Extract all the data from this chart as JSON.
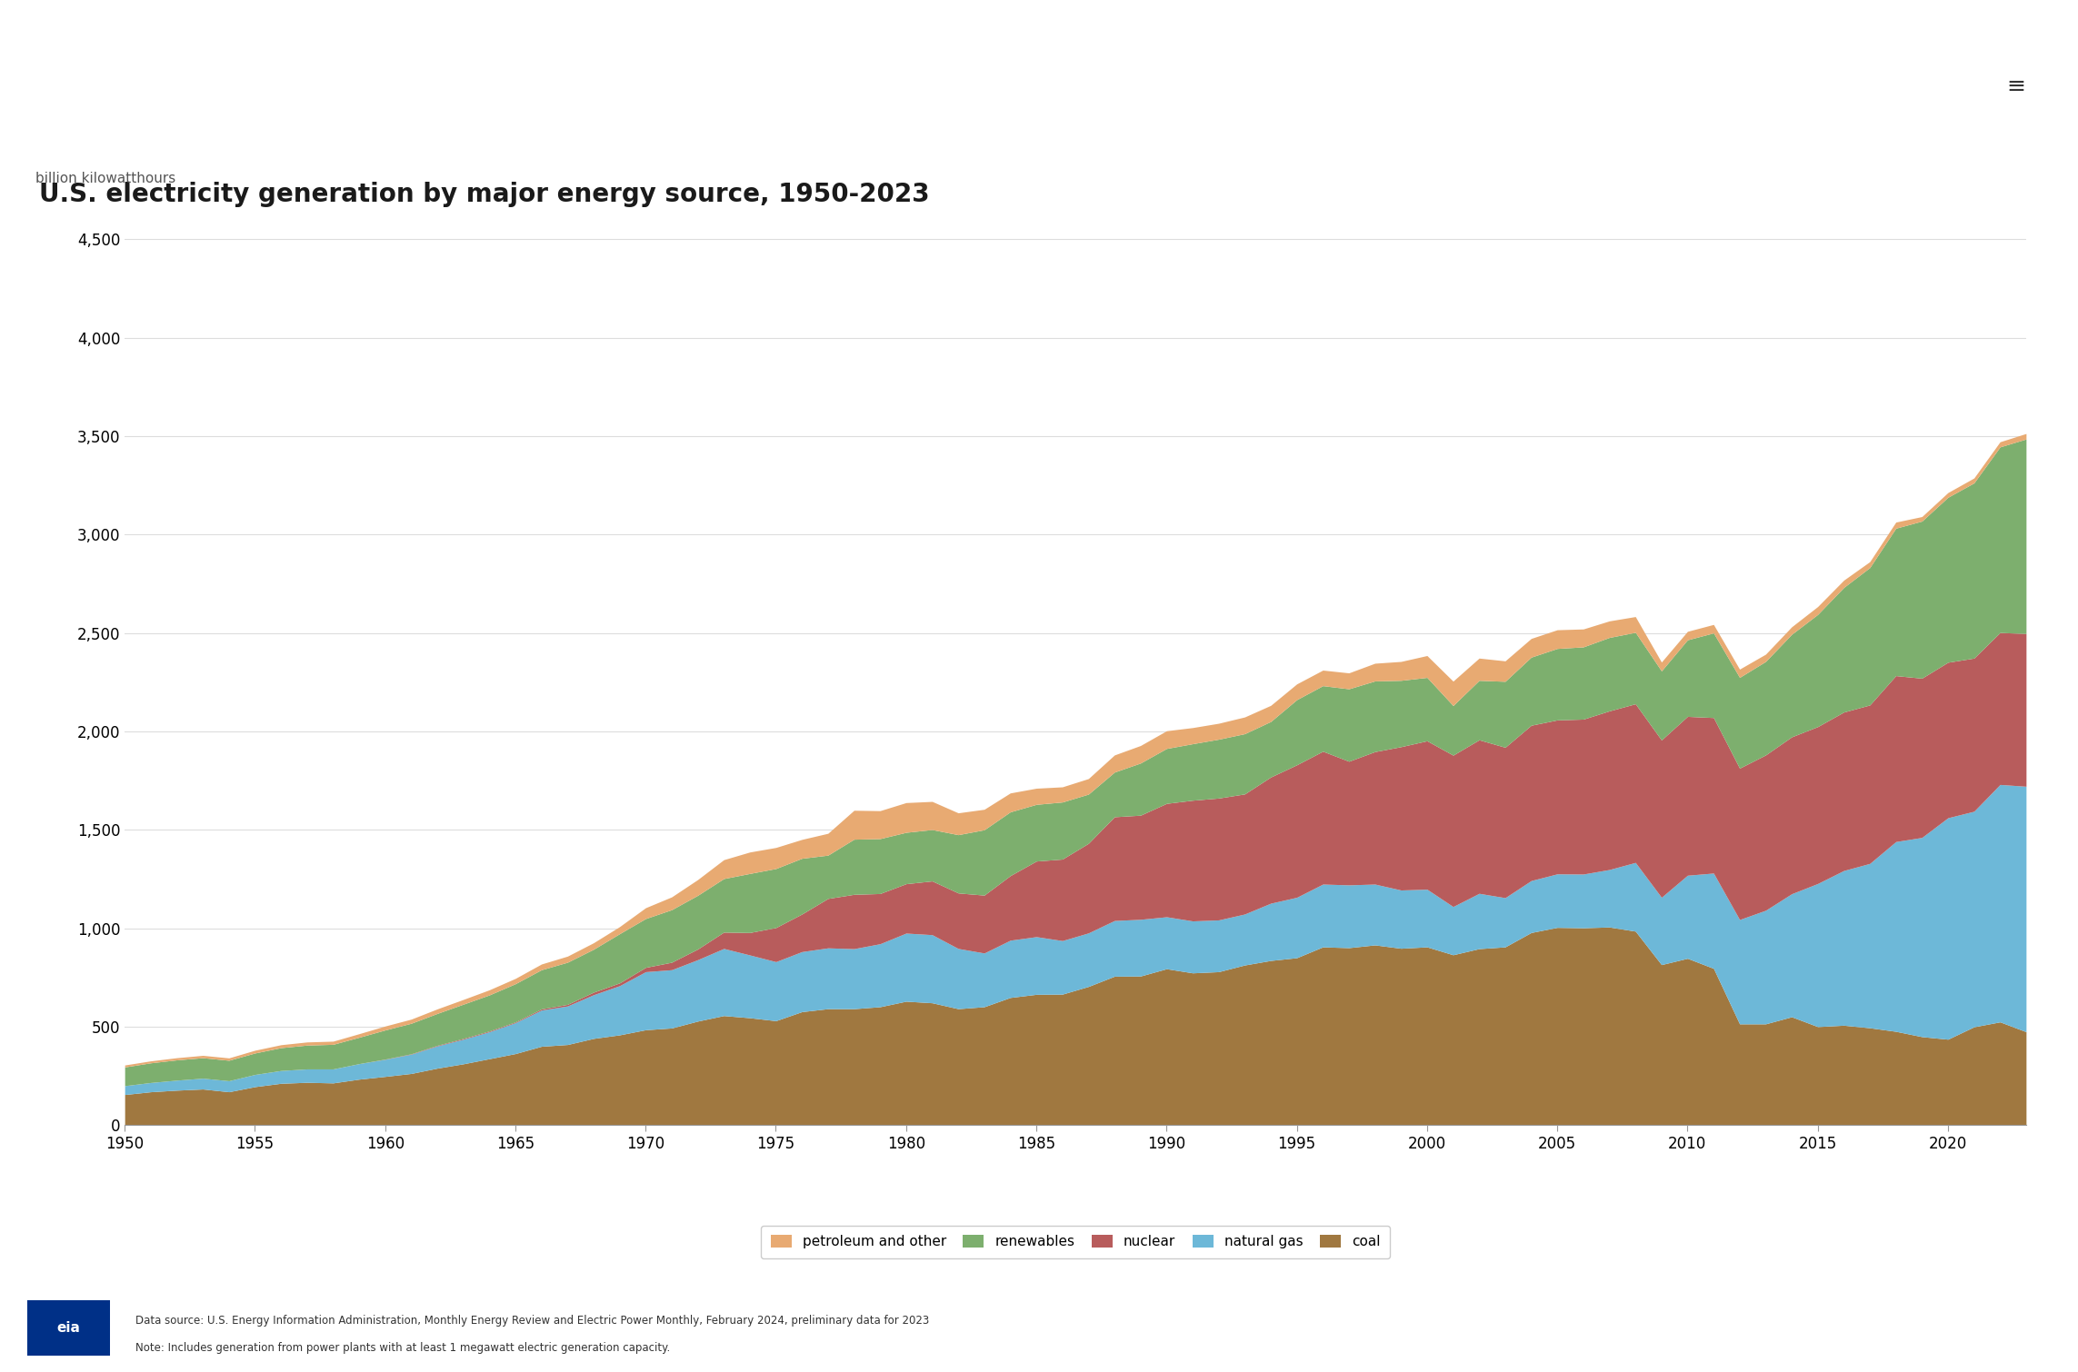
{
  "title": "U.S. electricity generation by major energy source, 1950-2023",
  "ylabel": "billion kilowatthours",
  "background_color": "#ffffff",
  "plot_background": "#ffffff",
  "grid_color": "#dddddd",
  "title_fontsize": 20,
  "ylabel_fontsize": 11,
  "tick_fontsize": 12,
  "legend_fontsize": 11,
  "colors": {
    "coal": "#a07840",
    "natural gas": "#6db8d8",
    "nuclear": "#b85c5c",
    "renewables": "#7daf6e",
    "petroleum and other": "#e8aa72"
  },
  "years": [
    1950,
    1951,
    1952,
    1953,
    1954,
    1955,
    1956,
    1957,
    1958,
    1959,
    1960,
    1961,
    1962,
    1963,
    1964,
    1965,
    1966,
    1967,
    1968,
    1969,
    1970,
    1971,
    1972,
    1973,
    1974,
    1975,
    1976,
    1977,
    1978,
    1979,
    1980,
    1981,
    1982,
    1983,
    1984,
    1985,
    1986,
    1987,
    1988,
    1989,
    1990,
    1991,
    1992,
    1993,
    1994,
    1995,
    1996,
    1997,
    1998,
    1999,
    2000,
    2001,
    2002,
    2003,
    2004,
    2005,
    2006,
    2007,
    2008,
    2009,
    2010,
    2011,
    2012,
    2013,
    2014,
    2015,
    2016,
    2017,
    2018,
    2019,
    2020,
    2021,
    2022,
    2023
  ],
  "coal": [
    155,
    169,
    177,
    183,
    169,
    195,
    212,
    217,
    214,
    233,
    247,
    262,
    289,
    311,
    337,
    363,
    400,
    409,
    440,
    458,
    484,
    493,
    528,
    556,
    545,
    530,
    576,
    591,
    591,
    601,
    629,
    621,
    591,
    601,
    648,
    664,
    665,
    704,
    756,
    757,
    794,
    773,
    779,
    813,
    836,
    850,
    905,
    901,
    915,
    898,
    905,
    865,
    896,
    905,
    978,
    1004,
    1002,
    1006,
    985,
    815,
    847,
    796,
    514,
    514,
    550,
    500,
    507,
    494,
    476,
    449,
    436,
    499,
    524,
    474
  ],
  "natural gas": [
    45,
    47,
    51,
    55,
    56,
    62,
    65,
    68,
    71,
    79,
    87,
    98,
    113,
    125,
    137,
    157,
    184,
    196,
    222,
    250,
    295,
    296,
    312,
    341,
    319,
    300,
    305,
    309,
    305,
    320,
    346,
    346,
    306,
    273,
    291,
    293,
    272,
    272,
    283,
    288,
    264,
    264,
    263,
    259,
    291,
    307,
    319,
    319,
    309,
    296,
    293,
    245,
    281,
    250,
    264,
    272,
    273,
    292,
    349,
    342,
    422,
    484,
    530,
    577,
    625,
    727,
    786,
    835,
    964,
    1012,
    1125,
    1095,
    1206,
    1247
  ],
  "nuclear": [
    0,
    0,
    0,
    0,
    0,
    0,
    0,
    0,
    0,
    0,
    1,
    2,
    3,
    4,
    4,
    4,
    6,
    8,
    13,
    14,
    22,
    38,
    54,
    83,
    114,
    173,
    191,
    251,
    276,
    255,
    251,
    273,
    282,
    294,
    328,
    384,
    414,
    455,
    527,
    529,
    576,
    613,
    619,
    610,
    641,
    673,
    675,
    628,
    673,
    728,
    754,
    769,
    780,
    764,
    789,
    782,
    787,
    806,
    806,
    799,
    807,
    790,
    769,
    789,
    797,
    797,
    805,
    805,
    843,
    809,
    790,
    778,
    772,
    776
  ],
  "renewables": [
    95,
    100,
    103,
    104,
    104,
    109,
    116,
    121,
    125,
    134,
    148,
    155,
    162,
    174,
    183,
    194,
    199,
    214,
    218,
    250,
    248,
    267,
    273,
    272,
    300,
    300,
    283,
    220,
    280,
    279,
    261,
    261,
    296,
    332,
    324,
    288,
    290,
    250,
    227,
    265,
    279,
    287,
    299,
    306,
    282,
    331,
    333,
    368,
    359,
    337,
    322,
    252,
    302,
    335,
    346,
    363,
    367,
    373,
    363,
    351,
    389,
    430,
    461,
    475,
    521,
    570,
    633,
    698,
    749,
    798,
    838,
    890,
    943,
    988
  ],
  "petroleum_and_other": [
    10,
    10,
    11,
    12,
    12,
    14,
    15,
    16,
    16,
    18,
    20,
    21,
    23,
    24,
    26,
    27,
    29,
    31,
    33,
    36,
    55,
    65,
    80,
    96,
    109,
    107,
    96,
    111,
    147,
    142,
    151,
    143,
    111,
    104,
    96,
    82,
    77,
    79,
    87,
    89,
    90,
    82,
    81,
    85,
    82,
    80,
    79,
    81,
    90,
    96,
    111,
    124,
    113,
    104,
    95,
    95,
    91,
    84,
    80,
    45,
    43,
    43,
    42,
    37,
    38,
    40,
    37,
    30,
    31,
    23,
    24,
    25,
    26,
    28
  ],
  "ylim": [
    0,
    4600
  ],
  "yticks": [
    0,
    500,
    1000,
    1500,
    2000,
    2500,
    3000,
    3500,
    4000,
    4500
  ],
  "xtick_start": 1950,
  "xtick_end": 2023,
  "xtick_step": 5
}
